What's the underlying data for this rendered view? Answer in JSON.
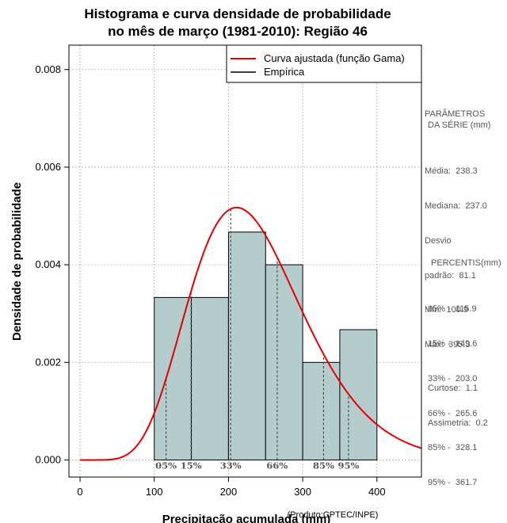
{
  "chart_data": {
    "type": "bar",
    "title": "Histograma e curva densidade de probabilidade",
    "subtitle": "no mês de março (1981-2010): Região 46",
    "xlabel": "Precipitação acumulada (mm)",
    "ylabel": "Densidade de probabilidade",
    "xlim": [
      -15,
      460
    ],
    "ylim": [
      -0.00035,
      0.0085
    ],
    "x_ticks": [
      0,
      100,
      200,
      300,
      400
    ],
    "x_tick_labels": [
      "0",
      "100",
      "200",
      "300",
      "400"
    ],
    "y_ticks": [
      0,
      0.002,
      0.004,
      0.006,
      0.008
    ],
    "y_tick_labels": [
      "0.000",
      "0.002",
      "0.004",
      "0.006",
      "0.008"
    ],
    "grid": true,
    "legend_position": "top-right",
    "legend": [
      {
        "label": "Curva ajustada (função Gama)",
        "color": "#e60000"
      },
      {
        "label": "Empírica",
        "color": "#000000"
      }
    ],
    "histogram": {
      "bin_edges": [
        100,
        150,
        200,
        250,
        300,
        350,
        400
      ],
      "densities": [
        0.00333,
        0.00333,
        0.00467,
        0.004,
        0.002,
        0.00267
      ],
      "fill_color": "#b4cccc"
    },
    "gamma_fit": {
      "shape": 8.64,
      "scale": 27.6,
      "color": "#e60000"
    },
    "percentile_markers": [
      {
        "label": "05%",
        "value": 115.9
      },
      {
        "label": "15%",
        "value": 149.6
      },
      {
        "label": "33%",
        "value": 203.0
      },
      {
        "label": "66%",
        "value": 265.6
      },
      {
        "label": "85%",
        "value": 328.1
      },
      {
        "label": "95%",
        "value": 361.7
      }
    ]
  },
  "product_note": "(Produto:CPTEC/INPE)",
  "params": {
    "heading_1": "PARÂMETROS",
    "heading_2": "DA SÉRIE (mm)",
    "lines": [
      "Média:  238.3",
      "Mediana:  237.0",
      "Desvio",
      "padrão:  81.1",
      "Mín:  100.9",
      "Máx:  395.3"
    ]
  },
  "percentis": {
    "heading": "PERCENTIS(mm)",
    "lines": [
      "05% -  115.9",
      "15% -  149.6",
      "33% -  203.0",
      "66% -  265.6",
      "85% -  328.1",
      "95% -  361.7"
    ]
  },
  "stats": {
    "lines": [
      "Curtose:  1.1",
      "Assimetria:  0.2"
    ]
  }
}
